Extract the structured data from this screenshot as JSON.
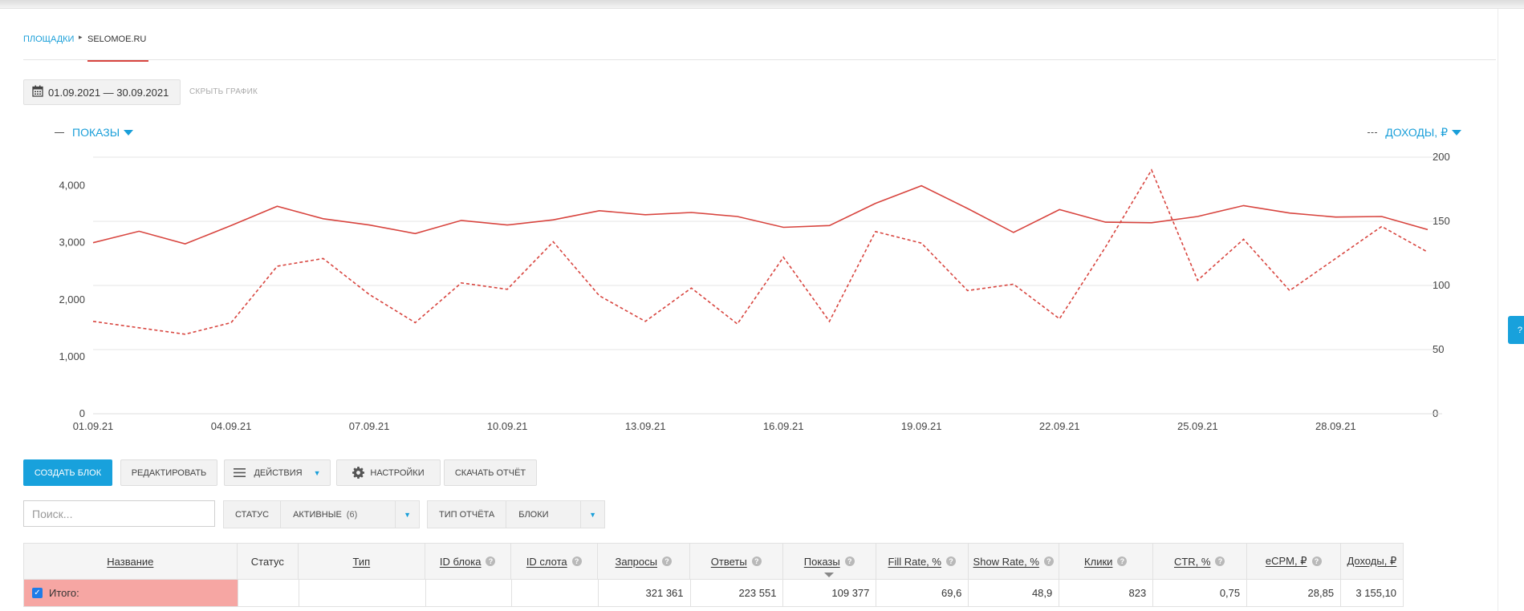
{
  "breadcrumbs": {
    "parent": "ПЛОЩАДКИ",
    "current": "SELOMOE.RU"
  },
  "toolbar": {
    "date_range": "01.09.2021 — 30.09.2021",
    "hide_chart": "СКРЫТЬ ГРАФИК"
  },
  "legend": {
    "left": "ПОКАЗЫ",
    "right": "ДОХОДЫ, ₽"
  },
  "colors": {
    "accent": "#18a1dc",
    "line": "#d8453f",
    "total_row": "#f6a6a3"
  },
  "chart_data": {
    "type": "line",
    "x": [
      "01.09.21",
      "02.09.21",
      "03.09.21",
      "04.09.21",
      "05.09.21",
      "06.09.21",
      "07.09.21",
      "08.09.21",
      "09.09.21",
      "10.09.21",
      "11.09.21",
      "12.09.21",
      "13.09.21",
      "14.09.21",
      "15.09.21",
      "16.09.21",
      "17.09.21",
      "18.09.21",
      "19.09.21",
      "20.09.21",
      "21.09.21",
      "22.09.21",
      "23.09.21",
      "24.09.21",
      "25.09.21",
      "26.09.21",
      "27.09.21",
      "28.09.21",
      "29.09.21",
      "30.09.21"
    ],
    "x_tick_labels": [
      "01.09.21",
      "04.09.21",
      "07.09.21",
      "10.09.21",
      "13.09.21",
      "16.09.21",
      "19.09.21",
      "22.09.21",
      "25.09.21",
      "28.09.21"
    ],
    "y_left_ticks": [
      "0",
      "1,000",
      "2,000",
      "3,000",
      "4,000"
    ],
    "y_right_ticks": [
      "0",
      "50",
      "100",
      "150",
      "200"
    ],
    "ylim_left": [
      0,
      4500
    ],
    "ylim_right": [
      0,
      200
    ],
    "grid": true,
    "series": [
      {
        "name": "ПОКАЗЫ",
        "axis": "left",
        "style": "solid",
        "values": [
          3000,
          3200,
          2980,
          3300,
          3640,
          3420,
          3310,
          3160,
          3390,
          3310,
          3400,
          3560,
          3490,
          3530,
          3460,
          3270,
          3300,
          3690,
          4000,
          3600,
          3180,
          3580,
          3360,
          3350,
          3460,
          3650,
          3520,
          3450,
          3460,
          3230
        ]
      },
      {
        "name": "ДОХОДЫ, ₽",
        "axis": "right",
        "style": "dashed",
        "values": [
          72,
          67,
          62,
          71,
          115,
          121,
          93,
          71,
          102,
          97,
          134,
          92,
          72,
          98,
          70,
          122,
          72,
          142,
          133,
          96,
          101,
          74,
          130,
          190,
          104,
          136,
          96,
          121,
          146,
          126
        ]
      }
    ]
  },
  "actions": {
    "create": "СОЗДАТЬ БЛОК",
    "edit": "РЕДАКТИРОВАТЬ",
    "actions": "ДЕЙСТВИЯ",
    "settings": "НАСТРОЙКИ",
    "download": "СКАЧАТЬ ОТЧЁТ"
  },
  "filters": {
    "search_placeholder": "Поиск...",
    "status_label": "СТАТУС",
    "status_value": "АКТИВНЫЕ",
    "status_count": "(6)",
    "report_label": "ТИП ОТЧЁТА",
    "report_value": "БЛОКИ"
  },
  "table": {
    "columns": [
      "Название",
      "Статус",
      "Тип",
      "ID блока",
      "ID слота",
      "Запросы",
      "Ответы",
      "Показы",
      "Fill Rate, %",
      "Show Rate, %",
      "Клики",
      "CTR, %",
      "eCPM, ₽",
      "Доходы, ₽"
    ],
    "total": {
      "name": "Итого:",
      "status": "",
      "type": "",
      "block_id": "",
      "slot_id": "",
      "requests": "321 361",
      "responses": "223 551",
      "impressions": "109 377",
      "fill_rate": "69,6",
      "show_rate": "48,9",
      "clicks": "823",
      "ctr": "0,75",
      "ecpm": "28,85",
      "revenue": "3 155,10"
    }
  },
  "side_tab": "?"
}
